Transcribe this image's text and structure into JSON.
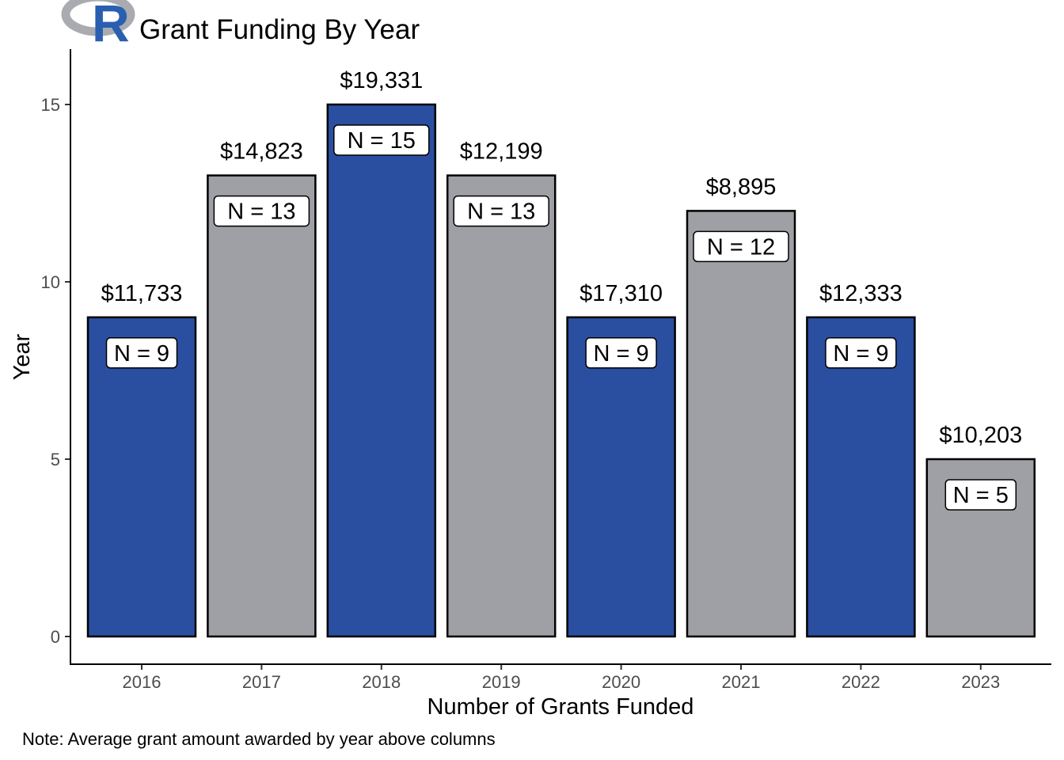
{
  "header": {
    "title": "Grant Funding By Year",
    "logo_text": "R"
  },
  "note": "Note: Average grant amount awarded by year above columns",
  "colors": {
    "blue": "#2a4fa0",
    "gray": "#9fa0a5",
    "bar_outline": "#000000",
    "tick": "#4d4d4d"
  },
  "chart_data": {
    "type": "bar",
    "title": "Grant Funding By Year",
    "xlabel": "Number of Grants Funded",
    "ylabel": "Year",
    "categories": [
      "2016",
      "2017",
      "2018",
      "2019",
      "2020",
      "2021",
      "2022",
      "2023"
    ],
    "values": [
      9,
      13,
      15,
      13,
      9,
      12,
      9,
      5
    ],
    "bar_labels": [
      "N = 9",
      "N = 13",
      "N = 15",
      "N = 13",
      "N = 9",
      "N = 12",
      "N = 9",
      "N = 5"
    ],
    "average_amounts": [
      "$11,733",
      "$14,823",
      "$19,331",
      "$12,199",
      "$17,310",
      "$8,895",
      "$12,333",
      "$10,203"
    ],
    "bar_colors": [
      "blue",
      "gray",
      "blue",
      "gray",
      "blue",
      "gray",
      "blue",
      "gray"
    ],
    "y_ticks": [
      0,
      5,
      10,
      15
    ],
    "ylim": [
      -0.8,
      16.5
    ],
    "grid": false,
    "legend": "none",
    "note": "Note: Average grant amount awarded by year above columns"
  }
}
